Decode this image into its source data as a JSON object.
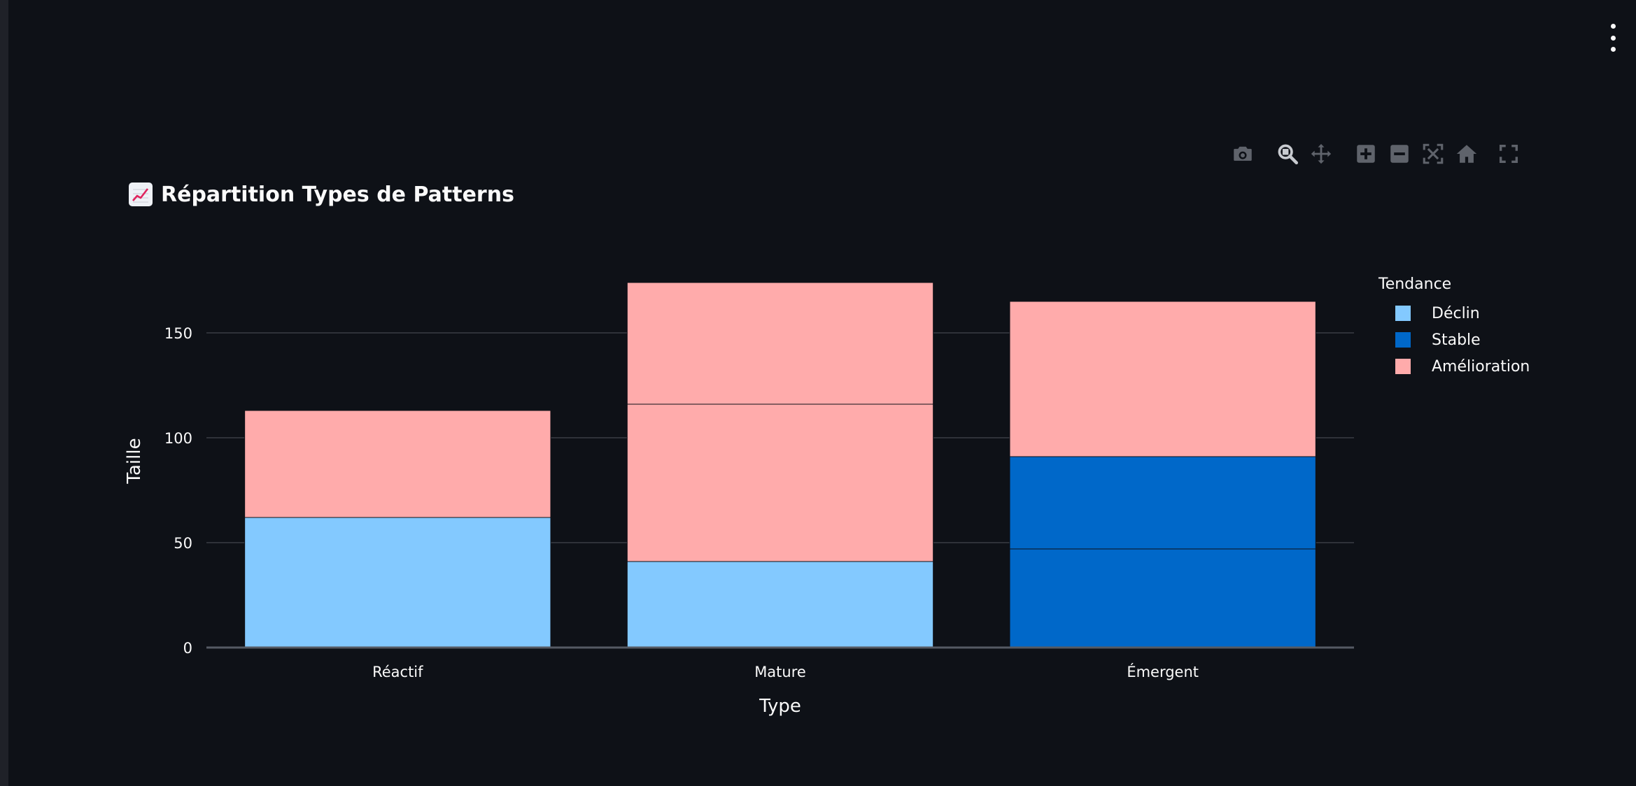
{
  "page": {
    "title_emoji": "📈",
    "title": "Répartition Types de Patterns"
  },
  "colors": {
    "background": "#0e1117",
    "gridline": "#3a3d45",
    "axis": "#555a63",
    "text": "#fafafa",
    "declin": "#83c9ff",
    "stable": "#0068c9",
    "amelioration": "#ffabab"
  },
  "modebar": [
    "camera-icon",
    "zoom-icon",
    "pan-icon",
    "zoom-in-icon",
    "zoom-out-icon",
    "autoscale-icon",
    "home-icon",
    "fullscreen-icon"
  ],
  "chart_data": {
    "type": "bar",
    "barmode": "stack",
    "title": "Répartition Types de Patterns",
    "xlabel": "Type",
    "ylabel": "Taille",
    "categories": [
      "Réactif",
      "Mature",
      "Émergent"
    ],
    "ylim": [
      0,
      178
    ],
    "yticks": [
      0,
      50,
      100,
      150
    ],
    "grid": true,
    "legend_title": "Tendance",
    "legend_position": "right",
    "series": [
      {
        "name": "Déclin",
        "color": "#83c9ff",
        "segments": [
          [
            62
          ],
          [
            41
          ],
          []
        ]
      },
      {
        "name": "Stable",
        "color": "#0068c9",
        "segments": [
          [],
          [],
          [
            47,
            44
          ]
        ]
      },
      {
        "name": "Amélioration",
        "color": "#ffabab",
        "segments": [
          [
            51
          ],
          [
            75,
            58
          ],
          [
            74
          ]
        ]
      }
    ]
  }
}
